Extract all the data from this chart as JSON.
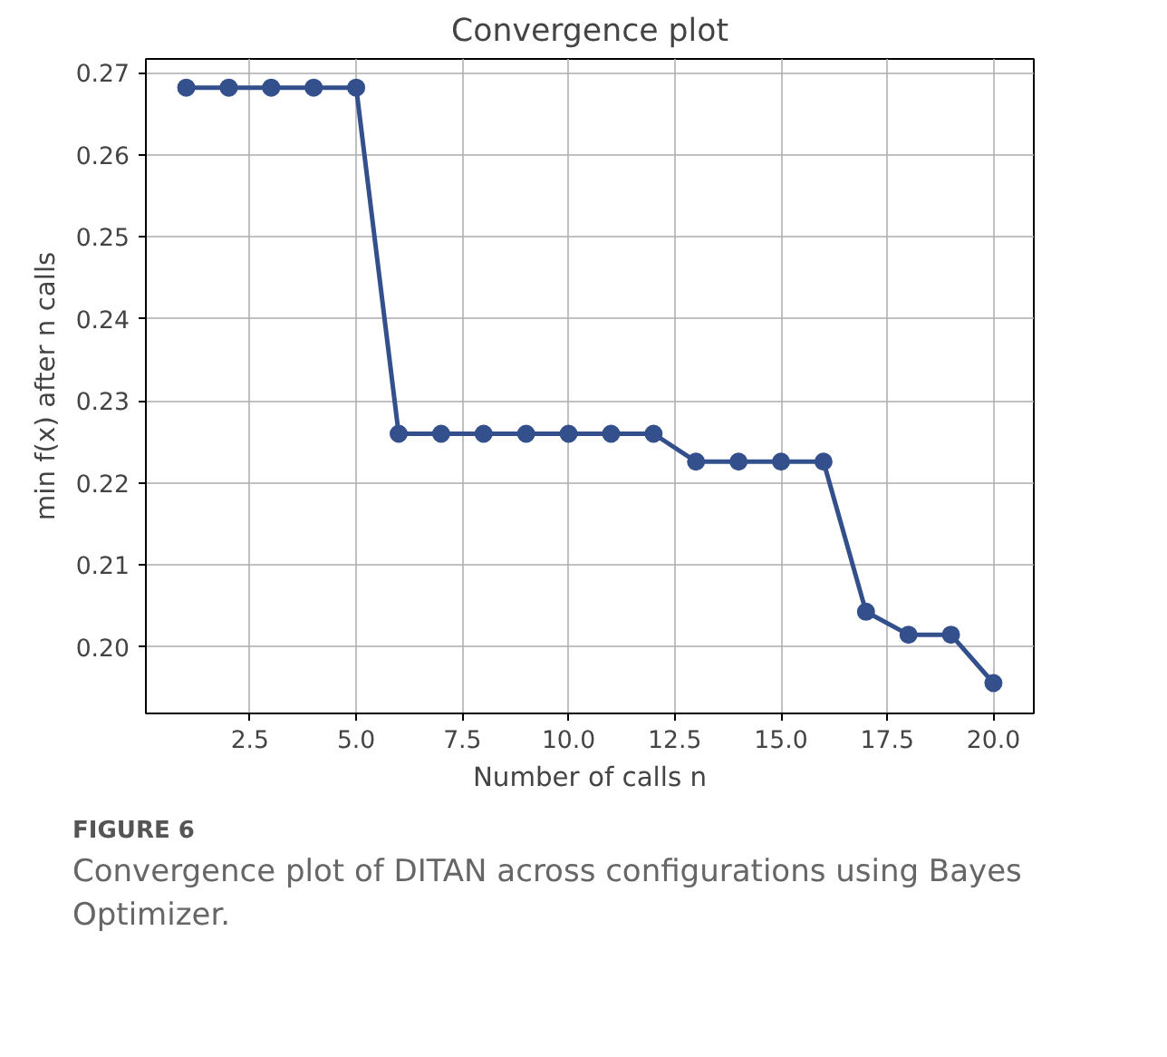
{
  "chart_data": {
    "type": "line",
    "title": "Convergence plot",
    "xlabel": "Number of calls n",
    "ylabel": "min f(x) after n calls",
    "x": [
      1,
      2,
      3,
      4,
      5,
      6,
      7,
      8,
      9,
      10,
      11,
      12,
      13,
      14,
      15,
      16,
      17,
      18,
      19,
      20
    ],
    "series": [
      {
        "color": "#34508c",
        "values": [
          0.2682,
          0.2682,
          0.2682,
          0.2682,
          0.2682,
          0.226,
          0.226,
          0.226,
          0.226,
          0.226,
          0.226,
          0.226,
          0.2226,
          0.2226,
          0.2226,
          0.2226,
          0.2043,
          0.2015,
          0.2015,
          0.1956
        ]
      }
    ],
    "xlim": [
      0.05,
      20.95
    ],
    "ylim": [
      0.1919,
      0.2717
    ],
    "xticks": [
      2.5,
      {
        "value": 5,
        "label": "5.0"
      },
      7.5,
      {
        "value": 10,
        "label": "10.0"
      },
      12.5,
      {
        "value": 15,
        "label": "15.0"
      },
      17.5,
      {
        "value": 20,
        "label": "20.0"
      }
    ],
    "yticks": [
      {
        "value": 0.2,
        "label": "0.20"
      },
      0.21,
      0.22,
      0.23,
      0.24,
      0.25,
      0.26,
      0.27
    ],
    "grid": true,
    "marker": "circle",
    "line_style": "solid",
    "annotations": [
      "FIGURE 6",
      "Convergence plot of DITAN across configurations using Bayes Optimizer."
    ]
  }
}
